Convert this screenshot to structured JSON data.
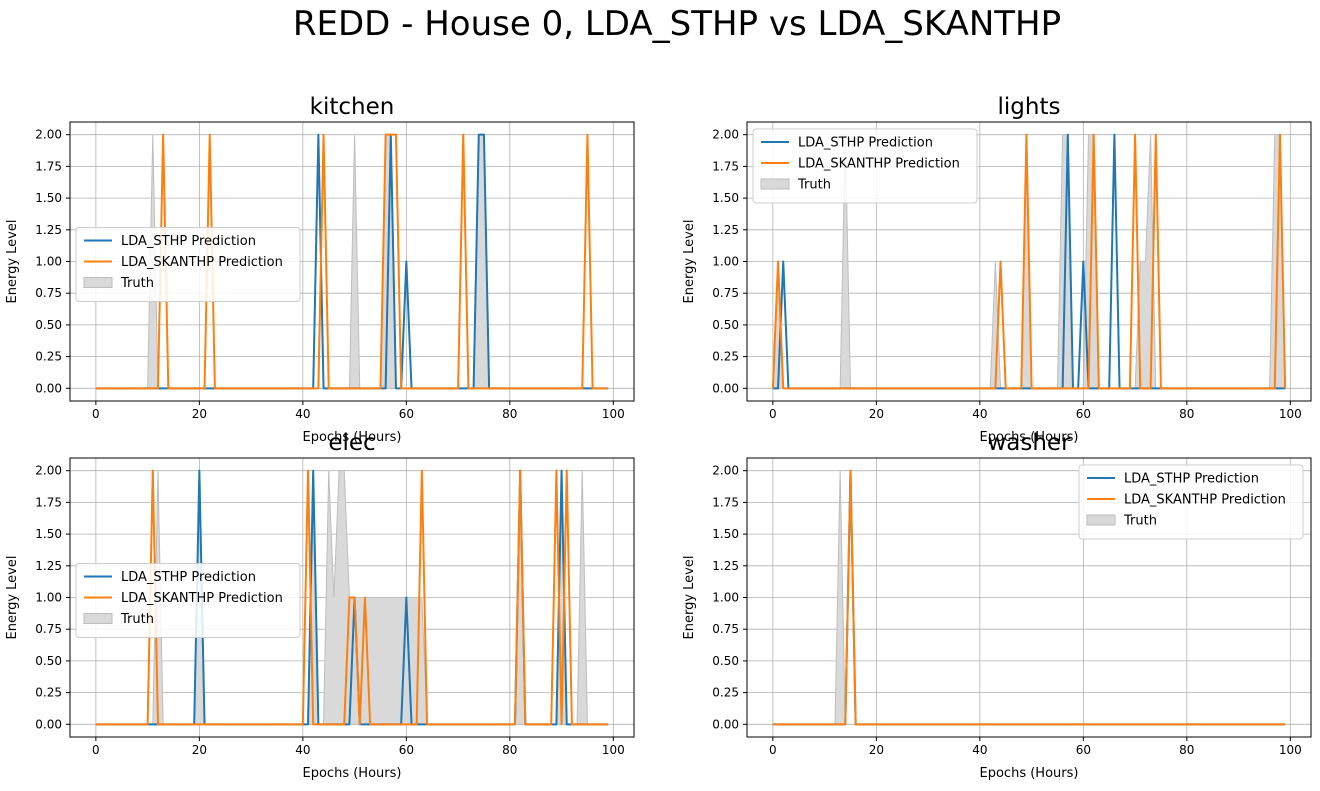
{
  "figure_title": "REDD - House 0, LDA_STHP vs LDA_SKANTHP",
  "colors": {
    "sthp": "#1f77b4",
    "skanthp": "#ff7f0e",
    "truth_fill": "#d9d9d9",
    "truth_edge": "#bdbdbd"
  },
  "chart_data": [
    {
      "type": "line",
      "title": "kitchen",
      "xlabel": "Epochs (Hours)",
      "ylabel": "Energy Level",
      "xlim": [
        -5,
        104
      ],
      "ylim": [
        -0.1,
        2.1
      ],
      "xticks": [
        0,
        20,
        40,
        60,
        80,
        100
      ],
      "xtick_labels": [
        "0",
        "20",
        "40",
        "60",
        "80",
        "100"
      ],
      "yticks": [
        0,
        0.25,
        0.5,
        0.75,
        1.0,
        1.25,
        1.5,
        1.75,
        2.0
      ],
      "ytick_labels": [
        "0.00",
        "0.25",
        "0.50",
        "0.75",
        "1.00",
        "1.25",
        "1.50",
        "1.75",
        "2.00"
      ],
      "grid": true,
      "legend_loc": "center-left",
      "legend": [
        "LDA_STHP Prediction",
        "LDA_SKANTHP Prediction",
        "Truth"
      ],
      "x_range": [
        0,
        99
      ],
      "series": [
        {
          "name": "LDA_STHP Prediction",
          "points": [
            [
              0,
              0
            ],
            [
              42,
              0
            ],
            [
              43,
              2
            ],
            [
              44,
              0
            ],
            [
              56,
              0
            ],
            [
              57,
              2
            ],
            [
              58,
              0
            ],
            [
              59,
              0
            ],
            [
              60,
              1
            ],
            [
              61,
              0
            ],
            [
              73,
              0
            ],
            [
              74,
              2
            ],
            [
              75,
              2
            ],
            [
              76,
              0
            ],
            [
              99,
              0
            ]
          ]
        },
        {
          "name": "LDA_SKANTHP Prediction",
          "points": [
            [
              0,
              0
            ],
            [
              12,
              0
            ],
            [
              13,
              2
            ],
            [
              14,
              0
            ],
            [
              21,
              0
            ],
            [
              22,
              2
            ],
            [
              23,
              0
            ],
            [
              43,
              0
            ],
            [
              44,
              2
            ],
            [
              45,
              0
            ],
            [
              55,
              0
            ],
            [
              56,
              2
            ],
            [
              58,
              2
            ],
            [
              59,
              0
            ],
            [
              70,
              0
            ],
            [
              71,
              2
            ],
            [
              72,
              0
            ],
            [
              94,
              0
            ],
            [
              95,
              2
            ],
            [
              96,
              0
            ],
            [
              99,
              0
            ]
          ]
        },
        {
          "name": "Truth",
          "points": [
            [
              0,
              0
            ],
            [
              10,
              0
            ],
            [
              11,
              2
            ],
            [
              12,
              0
            ],
            [
              49,
              0
            ],
            [
              50,
              2
            ],
            [
              51,
              0
            ],
            [
              55,
              0
            ],
            [
              56,
              2
            ],
            [
              57,
              2
            ],
            [
              58,
              0
            ],
            [
              73,
              0
            ],
            [
              74,
              2
            ],
            [
              75,
              2
            ],
            [
              76,
              0
            ],
            [
              99,
              0
            ]
          ]
        }
      ]
    },
    {
      "type": "line",
      "title": "lights",
      "xlabel": "Epochs (Hours)",
      "ylabel": "Energy Level",
      "xlim": [
        -5,
        104
      ],
      "ylim": [
        -0.1,
        2.1
      ],
      "xticks": [
        0,
        20,
        40,
        60,
        80,
        100
      ],
      "xtick_labels": [
        "0",
        "20",
        "40",
        "60",
        "80",
        "100"
      ],
      "yticks": [
        0,
        0.25,
        0.5,
        0.75,
        1.0,
        1.25,
        1.5,
        1.75,
        2.0
      ],
      "ytick_labels": [
        "0.00",
        "0.25",
        "0.50",
        "0.75",
        "1.00",
        "1.25",
        "1.50",
        "1.75",
        "2.00"
      ],
      "grid": true,
      "legend_loc": "upper-left",
      "legend": [
        "LDA_STHP Prediction",
        "LDA_SKANTHP Prediction",
        "Truth"
      ],
      "x_range": [
        0,
        99
      ],
      "series": [
        {
          "name": "LDA_STHP Prediction",
          "points": [
            [
              0,
              0
            ],
            [
              1,
              0
            ],
            [
              2,
              1
            ],
            [
              3,
              0
            ],
            [
              56,
              0
            ],
            [
              57,
              2
            ],
            [
              58,
              0
            ],
            [
              59,
              0
            ],
            [
              60,
              1
            ],
            [
              61,
              0
            ],
            [
              65,
              0
            ],
            [
              66,
              2
            ],
            [
              67,
              0
            ],
            [
              99,
              0
            ]
          ]
        },
        {
          "name": "LDA_SKANTHP Prediction",
          "points": [
            [
              0,
              0
            ],
            [
              1,
              1
            ],
            [
              2,
              0
            ],
            [
              43,
              0
            ],
            [
              44,
              1
            ],
            [
              45,
              0
            ],
            [
              48,
              0
            ],
            [
              49,
              2
            ],
            [
              50,
              0
            ],
            [
              61,
              0
            ],
            [
              62,
              2
            ],
            [
              63,
              0
            ],
            [
              69,
              0
            ],
            [
              70,
              2
            ],
            [
              71,
              0
            ],
            [
              73,
              0
            ],
            [
              74,
              2
            ],
            [
              75,
              0
            ],
            [
              97,
              0
            ],
            [
              98,
              2
            ],
            [
              99,
              0
            ]
          ]
        },
        {
          "name": "Truth",
          "points": [
            [
              0,
              0
            ],
            [
              1,
              1
            ],
            [
              2,
              0
            ],
            [
              13,
              0
            ],
            [
              14,
              2
            ],
            [
              15,
              0
            ],
            [
              42,
              0
            ],
            [
              43,
              1
            ],
            [
              44,
              0
            ],
            [
              48,
              0
            ],
            [
              49,
              2
            ],
            [
              50,
              0
            ],
            [
              55,
              0
            ],
            [
              56,
              2
            ],
            [
              57,
              2
            ],
            [
              58,
              0
            ],
            [
              60,
              0
            ],
            [
              61,
              2
            ],
            [
              62,
              2
            ],
            [
              63,
              0
            ],
            [
              70,
              0
            ],
            [
              71,
              1
            ],
            [
              72,
              1
            ],
            [
              73,
              2
            ],
            [
              74,
              0
            ],
            [
              96,
              0
            ],
            [
              97,
              2
            ],
            [
              98,
              2
            ],
            [
              99,
              0
            ]
          ]
        }
      ]
    },
    {
      "type": "line",
      "title": "elec",
      "xlabel": "Epochs (Hours)",
      "ylabel": "Energy Level",
      "xlim": [
        -5,
        104
      ],
      "ylim": [
        -0.1,
        2.1
      ],
      "xticks": [
        0,
        20,
        40,
        60,
        80,
        100
      ],
      "xtick_labels": [
        "0",
        "20",
        "40",
        "60",
        "80",
        "100"
      ],
      "yticks": [
        0,
        0.25,
        0.5,
        0.75,
        1.0,
        1.25,
        1.5,
        1.75,
        2.0
      ],
      "ytick_labels": [
        "0.00",
        "0.25",
        "0.50",
        "0.75",
        "1.00",
        "1.25",
        "1.50",
        "1.75",
        "2.00"
      ],
      "grid": true,
      "legend_loc": "center-left",
      "legend": [
        "LDA_STHP Prediction",
        "LDA_SKANTHP Prediction",
        "Truth"
      ],
      "x_range": [
        0,
        99
      ],
      "series": [
        {
          "name": "LDA_STHP Prediction",
          "points": [
            [
              0,
              0
            ],
            [
              19,
              0
            ],
            [
              20,
              2
            ],
            [
              21,
              0
            ],
            [
              41,
              0
            ],
            [
              42,
              2
            ],
            [
              43,
              0
            ],
            [
              49,
              0
            ],
            [
              50,
              1
            ],
            [
              51,
              0
            ],
            [
              59,
              0
            ],
            [
              60,
              1
            ],
            [
              61,
              0
            ],
            [
              81,
              0
            ],
            [
              82,
              2
            ],
            [
              83,
              0
            ],
            [
              89,
              0
            ],
            [
              90,
              2
            ],
            [
              91,
              0
            ],
            [
              99,
              0
            ]
          ]
        },
        {
          "name": "LDA_SKANTHP Prediction",
          "points": [
            [
              0,
              0
            ],
            [
              10,
              0
            ],
            [
              11,
              2
            ],
            [
              12,
              0
            ],
            [
              40,
              0
            ],
            [
              41,
              2
            ],
            [
              42,
              0
            ],
            [
              48,
              0
            ],
            [
              49,
              1
            ],
            [
              50,
              1
            ],
            [
              51,
              0
            ],
            [
              52,
              1
            ],
            [
              53,
              0
            ],
            [
              62,
              0
            ],
            [
              63,
              2
            ],
            [
              64,
              0
            ],
            [
              81,
              0
            ],
            [
              82,
              2
            ],
            [
              83,
              0
            ],
            [
              88,
              0
            ],
            [
              89,
              2
            ],
            [
              90,
              0
            ],
            [
              91,
              2
            ],
            [
              92,
              0
            ],
            [
              99,
              0
            ]
          ]
        },
        {
          "name": "Truth",
          "points": [
            [
              0,
              0
            ],
            [
              11,
              0
            ],
            [
              12,
              2
            ],
            [
              13,
              0
            ],
            [
              19,
              0
            ],
            [
              20,
              2
            ],
            [
              21,
              0
            ],
            [
              41,
              0
            ],
            [
              42,
              2
            ],
            [
              43,
              0
            ],
            [
              44,
              0
            ],
            [
              45,
              2
            ],
            [
              46,
              1
            ],
            [
              47,
              2
            ],
            [
              48,
              2
            ],
            [
              49,
              1
            ],
            [
              63,
              1
            ],
            [
              64,
              0
            ],
            [
              81,
              0
            ],
            [
              82,
              2
            ],
            [
              83,
              0
            ],
            [
              89,
              0
            ],
            [
              90,
              2
            ],
            [
              91,
              0
            ],
            [
              93,
              0
            ],
            [
              94,
              2
            ],
            [
              95,
              0
            ],
            [
              99,
              0
            ]
          ]
        }
      ]
    },
    {
      "type": "line",
      "title": "washer",
      "xlabel": "Epochs (Hours)",
      "ylabel": "Energy Level",
      "xlim": [
        -5,
        104
      ],
      "ylim": [
        -0.1,
        2.1
      ],
      "xticks": [
        0,
        20,
        40,
        60,
        80,
        100
      ],
      "xtick_labels": [
        "0",
        "20",
        "40",
        "60",
        "80",
        "100"
      ],
      "yticks": [
        0,
        0.25,
        0.5,
        0.75,
        1.0,
        1.25,
        1.5,
        1.75,
        2.0
      ],
      "ytick_labels": [
        "0.00",
        "0.25",
        "0.50",
        "0.75",
        "1.00",
        "1.25",
        "1.50",
        "1.75",
        "2.00"
      ],
      "grid": true,
      "legend_loc": "upper-right",
      "legend": [
        "LDA_STHP Prediction",
        "LDA_SKANTHP Prediction",
        "Truth"
      ],
      "x_range": [
        0,
        99
      ],
      "series": [
        {
          "name": "LDA_STHP Prediction",
          "points": [
            [
              0,
              0
            ],
            [
              14,
              0
            ],
            [
              15,
              2
            ],
            [
              16,
              0
            ],
            [
              99,
              0
            ]
          ]
        },
        {
          "name": "LDA_SKANTHP Prediction",
          "points": [
            [
              0,
              0
            ],
            [
              14,
              0
            ],
            [
              15,
              2
            ],
            [
              16,
              0
            ],
            [
              99,
              0
            ]
          ]
        },
        {
          "name": "Truth",
          "points": [
            [
              0,
              0
            ],
            [
              12,
              0
            ],
            [
              13,
              2
            ],
            [
              14,
              0
            ],
            [
              99,
              0
            ]
          ]
        }
      ]
    }
  ]
}
